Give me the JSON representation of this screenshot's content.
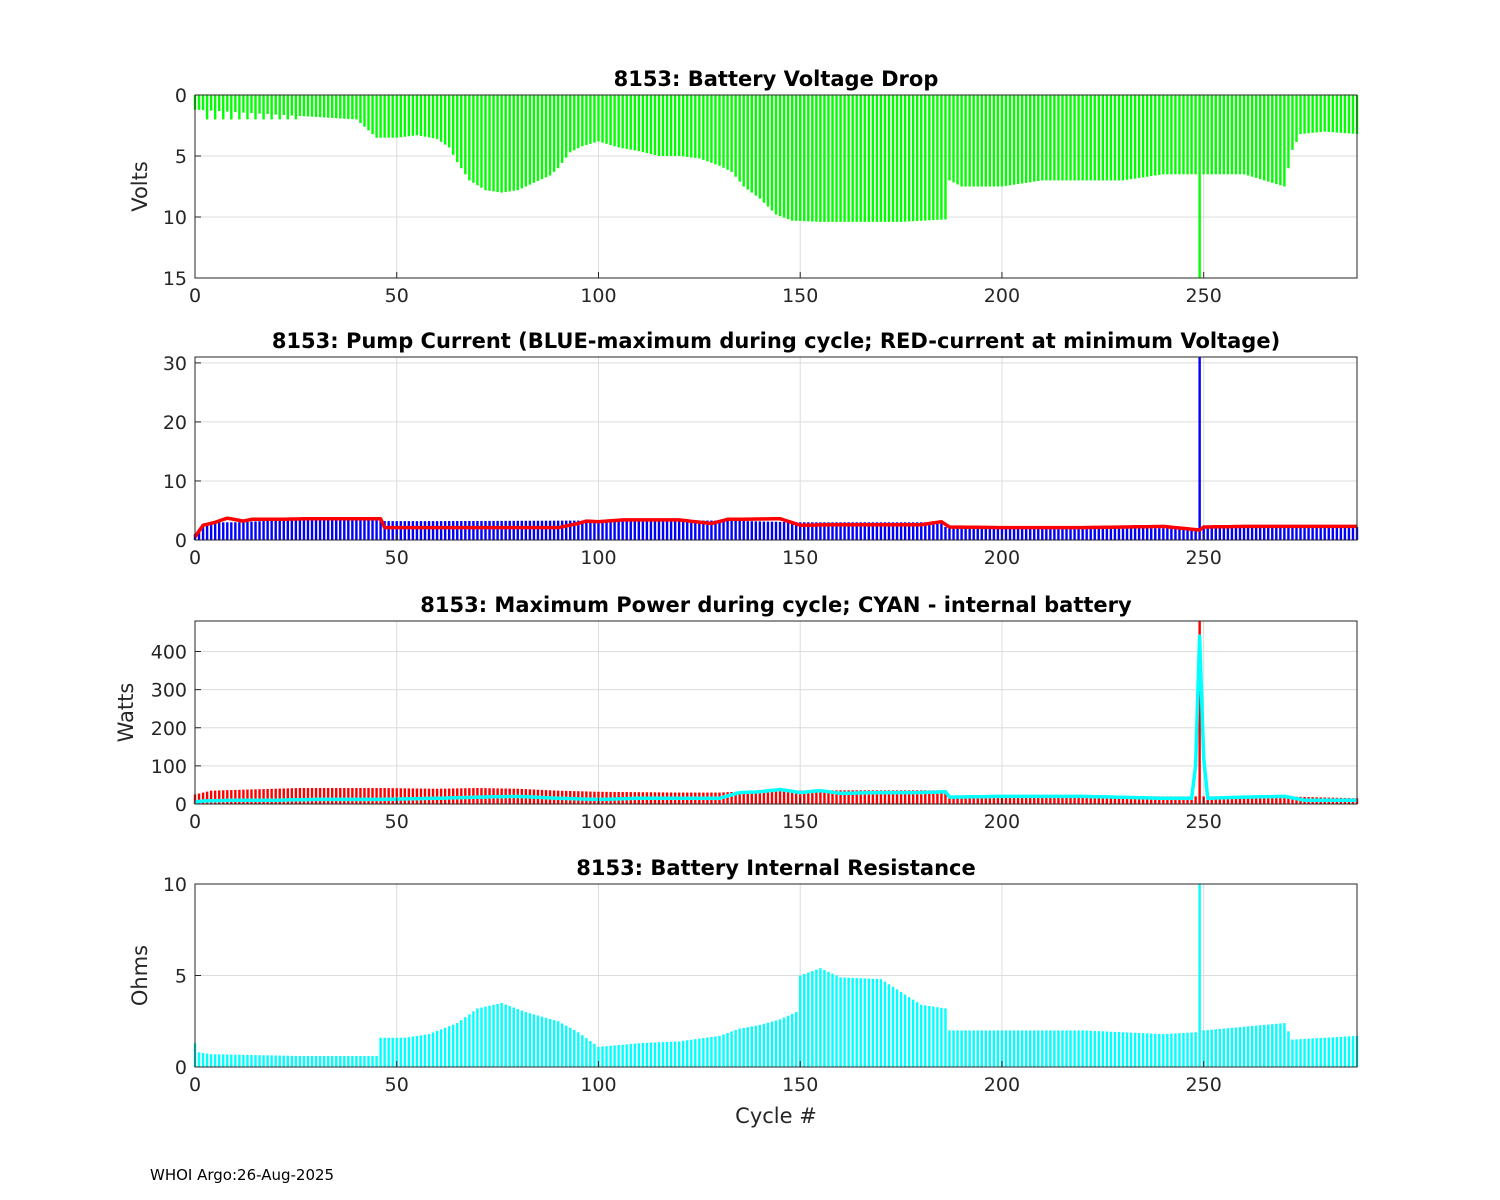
{
  "footer": "WHOI Argo:26-Aug-2025",
  "colors": {
    "green": "#00ff00",
    "blue": "#0000ff",
    "red": "#ff0000",
    "cyan": "#00ffff",
    "grid": "#dcdcdc",
    "axis": "#262626"
  },
  "chart_data": [
    {
      "id": "voltage_drop",
      "type": "bar",
      "title": "8153: Battery Voltage Drop",
      "ylabel": "Volts",
      "xlabel": "",
      "xlim": [
        0,
        288
      ],
      "ylim": [
        0,
        15
      ],
      "y_reversed": true,
      "xticks": [
        0,
        50,
        100,
        150,
        200,
        250
      ],
      "yticks": [
        0,
        5,
        10,
        15
      ],
      "grid": true,
      "series": [
        {
          "color": "green",
          "style": "bar",
          "points": [
            [
              0,
              1.2
            ],
            [
              40,
              2.0
            ],
            [
              45,
              3.5
            ],
            [
              50,
              3.5
            ],
            [
              55,
              3.3
            ],
            [
              60,
              3.6
            ],
            [
              63,
              4.3
            ],
            [
              65,
              5.5
            ],
            [
              68,
              7.0
            ],
            [
              72,
              7.8
            ],
            [
              76,
              8.0
            ],
            [
              80,
              7.8
            ],
            [
              84,
              7.2
            ],
            [
              88,
              6.6
            ],
            [
              90,
              6.0
            ],
            [
              93,
              4.7
            ],
            [
              96,
              4.2
            ],
            [
              100,
              3.8
            ],
            [
              105,
              4.3
            ],
            [
              110,
              4.6
            ],
            [
              115,
              5.0
            ],
            [
              120,
              5.0
            ],
            [
              125,
              5.2
            ],
            [
              130,
              5.8
            ],
            [
              133,
              6.3
            ],
            [
              136,
              7.5
            ],
            [
              140,
              8.5
            ],
            [
              144,
              9.8
            ],
            [
              148,
              10.3
            ],
            [
              155,
              10.4
            ],
            [
              165,
              10.4
            ],
            [
              175,
              10.4
            ],
            [
              186,
              10.2
            ],
            [
              187,
              7.0
            ],
            [
              190,
              7.5
            ],
            [
              200,
              7.5
            ],
            [
              210,
              7.0
            ],
            [
              220,
              7.0
            ],
            [
              230,
              7.0
            ],
            [
              240,
              6.5
            ],
            [
              250,
              6.5
            ],
            [
              260,
              6.5
            ],
            [
              265,
              7.0
            ],
            [
              270,
              7.5
            ],
            [
              272,
              4.5
            ],
            [
              274,
              3.2
            ],
            [
              280,
              3.0
            ],
            [
              288,
              3.2
            ]
          ],
          "spikes": [
            [
              3,
              2.0
            ],
            [
              5,
              2.0
            ],
            [
              7,
              2.0
            ],
            [
              9,
              2.0
            ],
            [
              11,
              2.0
            ],
            [
              13,
              2.0
            ],
            [
              15,
              2.0
            ],
            [
              17,
              2.0
            ],
            [
              19,
              2.0
            ],
            [
              21,
              2.0
            ],
            [
              23,
              2.0
            ],
            [
              25,
              2.0
            ],
            [
              249,
              15.0
            ]
          ]
        }
      ]
    },
    {
      "id": "pump_current",
      "type": "bar",
      "title": "8153: Pump Current (BLUE-maximum during cycle; RED-current at minimum Voltage)",
      "ylabel": "",
      "xlabel": "",
      "xlim": [
        0,
        288
      ],
      "ylim": [
        0,
        31
      ],
      "xticks": [
        0,
        50,
        100,
        150,
        200,
        250
      ],
      "yticks": [
        0,
        10,
        20,
        30
      ],
      "grid": true,
      "series": [
        {
          "color": "blue",
          "style": "bar",
          "points": [
            [
              0,
              1.0
            ],
            [
              2,
              2.6
            ],
            [
              6,
              3.0
            ],
            [
              10,
              3.0
            ],
            [
              20,
              3.3
            ],
            [
              30,
              3.5
            ],
            [
              46,
              3.5
            ],
            [
              47,
              3.2
            ],
            [
              60,
              3.2
            ],
            [
              100,
              3.3
            ],
            [
              130,
              3.3
            ],
            [
              150,
              3.0
            ],
            [
              185,
              3.0
            ],
            [
              186,
              2.2
            ],
            [
              200,
              2.0
            ],
            [
              248,
              2.0
            ],
            [
              250,
              2.2
            ],
            [
              288,
              2.2
            ]
          ],
          "spikes": [
            [
              249,
              31.0
            ]
          ]
        },
        {
          "color": "red",
          "style": "line",
          "points": [
            [
              0,
              0.5
            ],
            [
              2,
              2.5
            ],
            [
              5,
              3.0
            ],
            [
              8,
              3.7
            ],
            [
              12,
              3.2
            ],
            [
              14,
              3.5
            ],
            [
              20,
              3.5
            ],
            [
              28,
              3.6
            ],
            [
              46,
              3.6
            ],
            [
              47,
              2.1
            ],
            [
              90,
              2.1
            ],
            [
              95,
              2.8
            ],
            [
              97,
              3.2
            ],
            [
              100,
              3.1
            ],
            [
              106,
              3.4
            ],
            [
              120,
              3.4
            ],
            [
              128,
              2.8
            ],
            [
              132,
              3.5
            ],
            [
              145,
              3.6
            ],
            [
              150,
              2.5
            ],
            [
              160,
              2.6
            ],
            [
              170,
              2.6
            ],
            [
              180,
              2.6
            ],
            [
              185,
              3.1
            ],
            [
              187,
              2.2
            ],
            [
              200,
              2.1
            ],
            [
              220,
              2.1
            ],
            [
              240,
              2.3
            ],
            [
              249,
              1.7
            ],
            [
              250,
              2.2
            ],
            [
              260,
              2.3
            ],
            [
              275,
              2.3
            ],
            [
              288,
              2.3
            ]
          ]
        }
      ]
    },
    {
      "id": "max_power",
      "type": "bar",
      "title": "8153: Maximum Power during cycle; CYAN - internal battery",
      "ylabel": "Watts",
      "xlabel": "",
      "xlim": [
        0,
        288
      ],
      "ylim": [
        0,
        480
      ],
      "xticks": [
        0,
        50,
        100,
        150,
        200,
        250
      ],
      "yticks": [
        0,
        100,
        200,
        300,
        400
      ],
      "grid": true,
      "series": [
        {
          "color": "red",
          "style": "bar",
          "points": [
            [
              0,
              25
            ],
            [
              4,
              35
            ],
            [
              26,
              42
            ],
            [
              46,
              42
            ],
            [
              60,
              40
            ],
            [
              70,
              42
            ],
            [
              80,
              40
            ],
            [
              90,
              35
            ],
            [
              100,
              32
            ],
            [
              120,
              30
            ],
            [
              130,
              30
            ],
            [
              140,
              35
            ],
            [
              160,
              36
            ],
            [
              186,
              36
            ],
            [
              187,
              22
            ],
            [
              200,
              20
            ],
            [
              248,
              20
            ],
            [
              250,
              20
            ],
            [
              270,
              20
            ],
            [
              288,
              15
            ]
          ],
          "spikes": [
            [
              249,
              480
            ]
          ]
        },
        {
          "color": "cyan",
          "style": "line",
          "points": [
            [
              0,
              5
            ],
            [
              2,
              8
            ],
            [
              10,
              10
            ],
            [
              20,
              10
            ],
            [
              30,
              12
            ],
            [
              46,
              12
            ],
            [
              60,
              15
            ],
            [
              70,
              18
            ],
            [
              80,
              20
            ],
            [
              90,
              15
            ],
            [
              100,
              12
            ],
            [
              110,
              15
            ],
            [
              130,
              15
            ],
            [
              135,
              30
            ],
            [
              140,
              32
            ],
            [
              145,
              38
            ],
            [
              150,
              30
            ],
            [
              155,
              35
            ],
            [
              160,
              28
            ],
            [
              170,
              30
            ],
            [
              180,
              30
            ],
            [
              186,
              32
            ],
            [
              187,
              18
            ],
            [
              200,
              20
            ],
            [
              220,
              20
            ],
            [
              240,
              15
            ],
            [
              247,
              15
            ],
            [
              248,
              100
            ],
            [
              249,
              440
            ],
            [
              250,
              120
            ],
            [
              251,
              15
            ],
            [
              260,
              18
            ],
            [
              270,
              20
            ],
            [
              275,
              10
            ],
            [
              288,
              10
            ]
          ]
        }
      ]
    },
    {
      "id": "internal_resistance",
      "type": "bar",
      "title": "8153: Battery Internal Resistance",
      "ylabel": "Ohms",
      "xlabel": "Cycle #",
      "xlim": [
        0,
        288
      ],
      "ylim": [
        0,
        10
      ],
      "xticks": [
        0,
        50,
        100,
        150,
        200,
        250
      ],
      "yticks": [
        0,
        5,
        10
      ],
      "grid": true,
      "series": [
        {
          "color": "cyan",
          "style": "bar",
          "points": [
            [
              0,
              1.3
            ],
            [
              1,
              0.8
            ],
            [
              4,
              0.7
            ],
            [
              26,
              0.6
            ],
            [
              40,
              0.6
            ],
            [
              45,
              0.6
            ],
            [
              46,
              1.6
            ],
            [
              52,
              1.6
            ],
            [
              58,
              1.8
            ],
            [
              65,
              2.4
            ],
            [
              70,
              3.2
            ],
            [
              76,
              3.5
            ],
            [
              82,
              3.0
            ],
            [
              90,
              2.5
            ],
            [
              95,
              1.9
            ],
            [
              100,
              1.1
            ],
            [
              105,
              1.2
            ],
            [
              110,
              1.3
            ],
            [
              120,
              1.4
            ],
            [
              130,
              1.7
            ],
            [
              135,
              2.1
            ],
            [
              140,
              2.3
            ],
            [
              145,
              2.6
            ],
            [
              149,
              3.0
            ],
            [
              150,
              5.0
            ],
            [
              155,
              5.4
            ],
            [
              160,
              4.9
            ],
            [
              170,
              4.8
            ],
            [
              180,
              3.4
            ],
            [
              186,
              3.2
            ],
            [
              187,
              2.0
            ],
            [
              200,
              2.0
            ],
            [
              220,
              2.0
            ],
            [
              240,
              1.8
            ],
            [
              248,
              1.9
            ],
            [
              249,
              10.0
            ],
            [
              250,
              2.0
            ],
            [
              260,
              2.2
            ],
            [
              270,
              2.4
            ],
            [
              272,
              1.5
            ],
            [
              280,
              1.6
            ],
            [
              288,
              1.7
            ]
          ],
          "spikes": []
        }
      ]
    }
  ]
}
